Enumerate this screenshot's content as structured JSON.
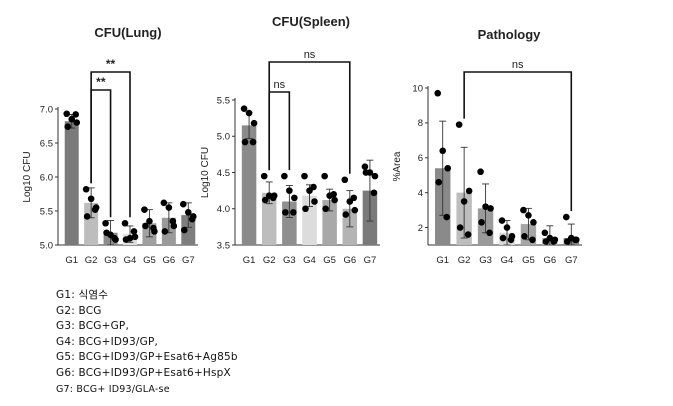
{
  "chart_data": [
    {
      "type": "bar",
      "title": "CFU(Lung)",
      "ylabel": "Log10 CFU",
      "categories": [
        "G1",
        "G2",
        "G3",
        "G4",
        "G5",
        "G6",
        "G7"
      ],
      "values": [
        6.82,
        5.62,
        5.18,
        5.16,
        5.32,
        5.4,
        5.44
      ],
      "errors": [
        0.1,
        0.22,
        0.18,
        0.12,
        0.2,
        0.22,
        0.18
      ],
      "points": [
        [
          6.93,
          6.85,
          6.8,
          6.74,
          6.92
        ],
        [
          5.82,
          5.68,
          5.55,
          5.42,
          5.52
        ],
        [
          5.32,
          5.15,
          5.08,
          5.18,
          5.1
        ],
        [
          5.32,
          5.1,
          5.12,
          5.08,
          5.2
        ],
        [
          5.52,
          5.35,
          5.2,
          5.28,
          5.25
        ],
        [
          5.62,
          5.55,
          5.28,
          5.2,
          5.35
        ],
        [
          5.6,
          5.48,
          5.42,
          5.22,
          5.38
        ]
      ],
      "ylim": [
        5.0,
        7.0
      ],
      "yticks": [
        "5.0",
        "5.5",
        "6.0",
        "6.5",
        "7.0"
      ],
      "ytick_values": [
        5.0,
        5.5,
        6.0,
        6.5,
        7.0
      ],
      "bar_colors": [
        "#7a7a7a",
        "#bdbdbd",
        "#8c8c8c",
        "#dedede",
        "#a0a0a0",
        "#9a9a9a",
        "#7e7e7e"
      ],
      "significance": [
        {
          "from": "G2",
          "to": "G3",
          "label": "**"
        },
        {
          "from": "G2",
          "to": "G4",
          "label": "**"
        }
      ]
    },
    {
      "type": "bar",
      "title": "CFU(Spleen)",
      "ylabel": "Log10 CFU",
      "categories": [
        "G1",
        "G2",
        "G3",
        "G4",
        "G5",
        "G6",
        "G7"
      ],
      "values": [
        5.15,
        4.22,
        4.1,
        4.18,
        4.12,
        4.0,
        4.25
      ],
      "errors": [
        0.18,
        0.15,
        0.22,
        0.15,
        0.15,
        0.25,
        0.42
      ],
      "points": [
        [
          5.38,
          5.32,
          5.18,
          4.92,
          4.92
        ],
        [
          4.45,
          4.18,
          4.18,
          4.12,
          4.15
        ],
        [
          4.45,
          4.25,
          4.15,
          3.95,
          3.95
        ],
        [
          4.45,
          4.25,
          4.1,
          4.0,
          4.3
        ],
        [
          4.45,
          4.18,
          4.12,
          4.0,
          4.2
        ],
        [
          4.4,
          4.1,
          3.98,
          3.92,
          4.15
        ],
        [
          4.58,
          4.5,
          4.45,
          4.5,
          4.22
        ]
      ],
      "ylim": [
        3.5,
        5.5
      ],
      "yticks": [
        "3.5",
        "4.0",
        "4.5",
        "5.0",
        "5.5"
      ],
      "ytick_values": [
        3.5,
        4.0,
        4.5,
        5.0,
        5.5
      ],
      "bar_colors": [
        "#8a8a8a",
        "#bdbdbd",
        "#8f8f8f",
        "#dcdcdc",
        "#a8a8a8",
        "#b4b4b4",
        "#7a7a7a"
      ],
      "significance": [
        {
          "from": "G2",
          "to": "G3",
          "label": "ns"
        },
        {
          "from": "G2",
          "to": "G6",
          "label": "ns"
        }
      ]
    },
    {
      "type": "bar",
      "title": "Pathology",
      "ylabel": "%Area",
      "categories": [
        "G1",
        "G2",
        "G3",
        "G4",
        "G5",
        "G6",
        "G7"
      ],
      "values": [
        5.4,
        4.0,
        3.1,
        1.7,
        2.2,
        1.4,
        1.4
      ],
      "errors": [
        2.7,
        2.6,
        1.4,
        0.7,
        0.9,
        0.7,
        0.8
      ],
      "points": [
        [
          9.7,
          6.4,
          5.4,
          4.6,
          2.6
        ],
        [
          7.9,
          3.5,
          4.1,
          2.0,
          1.6
        ],
        [
          5.2,
          3.2,
          3.1,
          2.3,
          1.7
        ],
        [
          2.4,
          2.0,
          1.5,
          1.4,
          1.3
        ],
        [
          3.0,
          2.7,
          2.3,
          1.5,
          1.3
        ],
        [
          1.7,
          1.4,
          1.3,
          1.2,
          1.2
        ],
        [
          2.6,
          1.4,
          1.3,
          1.2,
          1.3
        ]
      ],
      "ylim": [
        1,
        10
      ],
      "yticks": [
        "2",
        "4",
        "6",
        "8",
        "10"
      ],
      "ytick_values": [
        2,
        4,
        6,
        8,
        10
      ],
      "bar_colors": [
        "#8a8a8a",
        "#bdbdbd",
        "#9a9a9a",
        "#d8d8d8",
        "#a5a5a5",
        "#b8b8b8",
        "#858585"
      ],
      "significance": [
        {
          "from": "G2",
          "to": "G7",
          "label": "ns"
        }
      ]
    }
  ],
  "legend": [
    "G1: 식염수",
    "G2: BCG",
    "G3: BCG+GP,",
    "G4: BCG+ID93/GP,",
    "G5: BCG+ID93/GP+Esat6+Ag85b",
    "G6: BCG+ID93/GP+Esat6+HspX",
    "G7: BCG+ ID93/GLA-se"
  ]
}
